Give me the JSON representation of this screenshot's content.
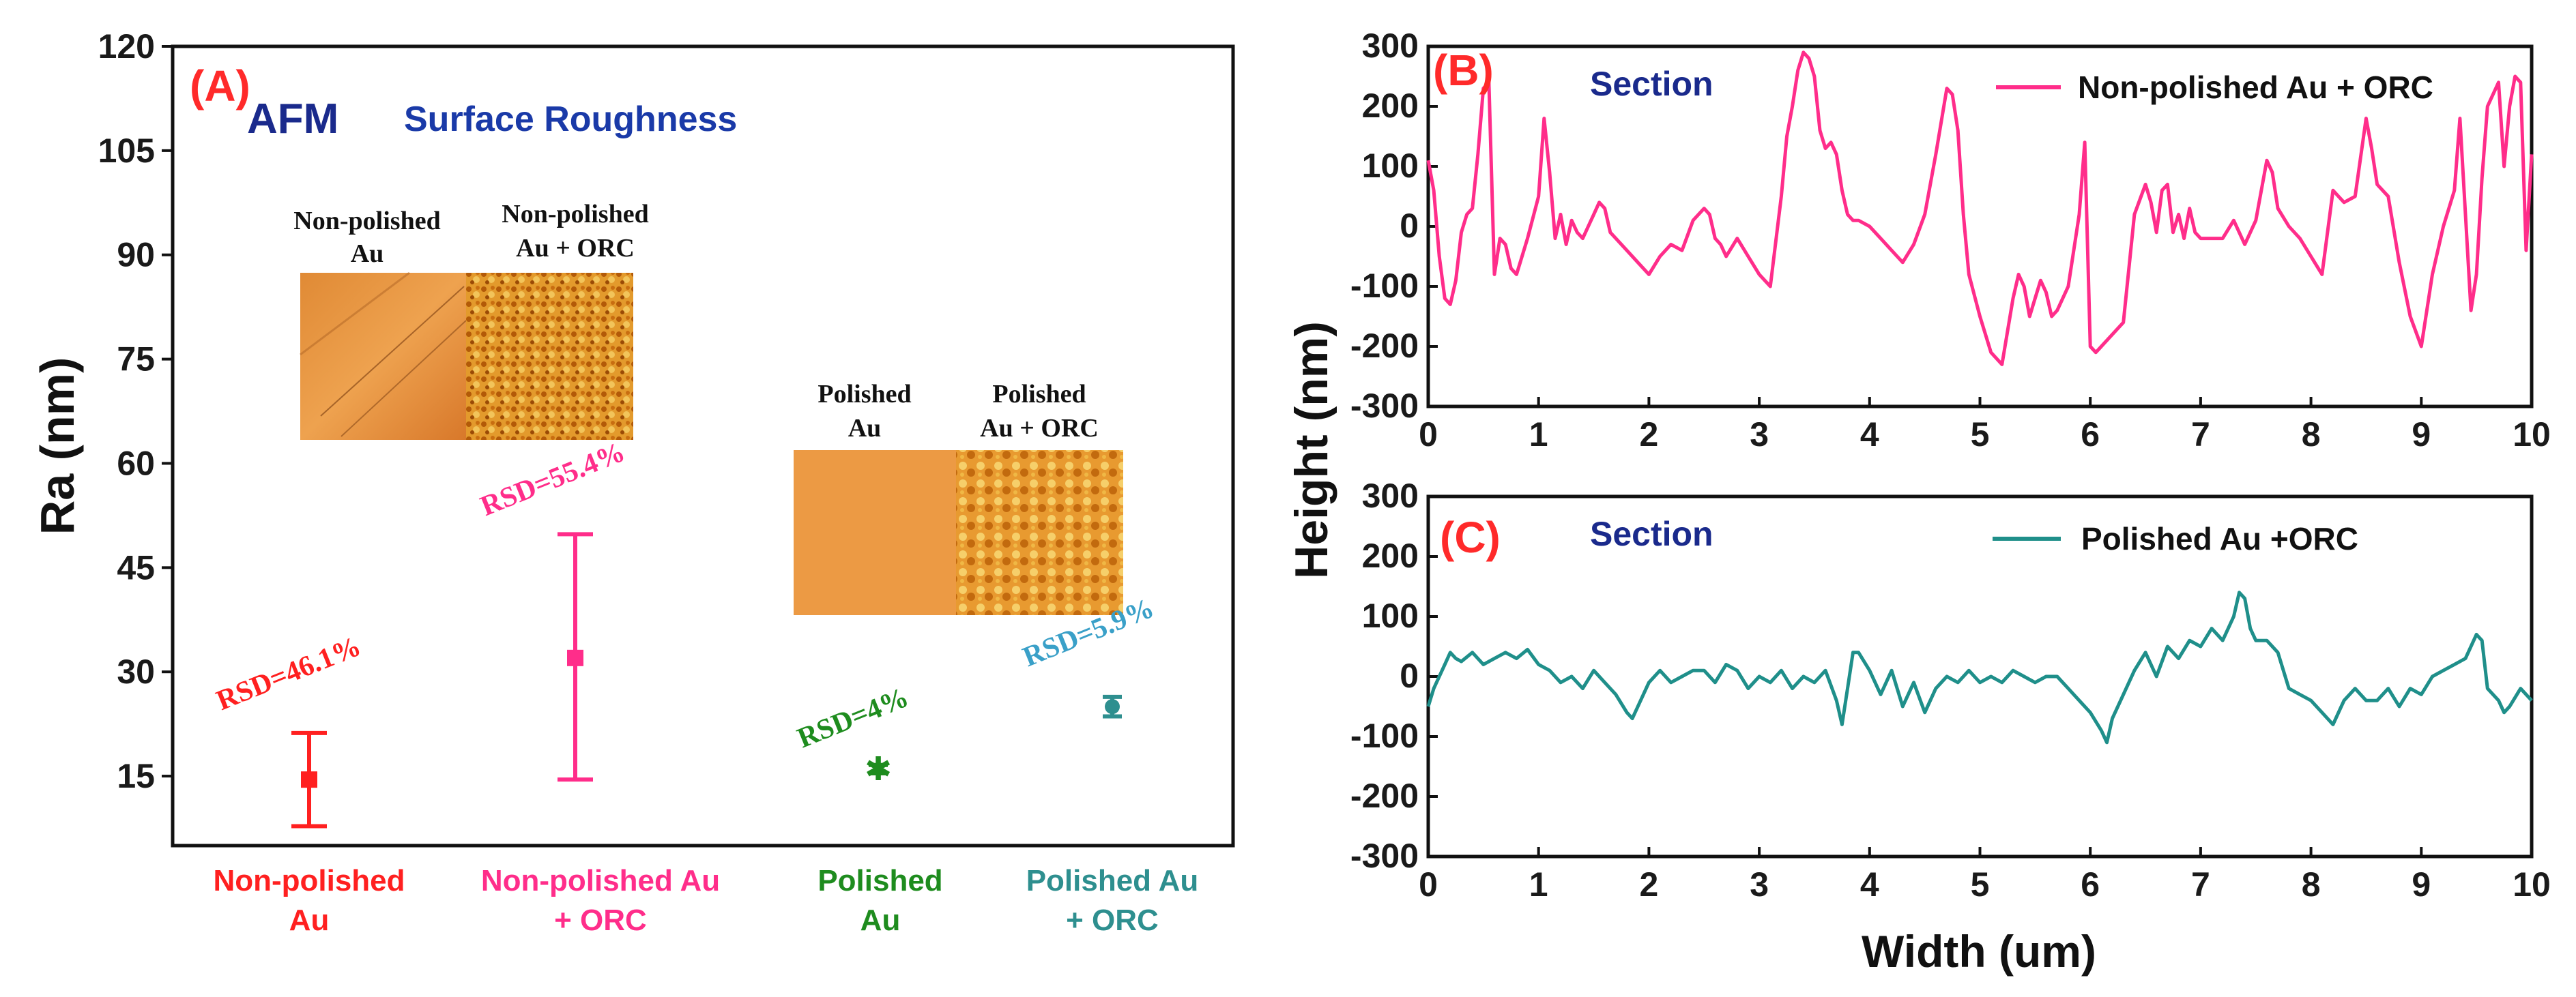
{
  "colors": {
    "nonpolished": "#ff2020",
    "nonpolished_orc": "#ff2d8a",
    "polished": "#1e8c1e",
    "polished_orc": "#2e8f8f",
    "panel_label": "#ff2a2a",
    "title_blue": "#1a2a8c",
    "rsd_polished_orc": "#3aa0c8",
    "trace_b": "#ff2d8a",
    "trace_c": "#1f8f8a",
    "afm_smooth": "#e6882a",
    "afm_rough": "#c8650a"
  },
  "chart_data": [
    {
      "id": "A",
      "type": "scatter",
      "panel_label": "(A)",
      "title_main": "AFM",
      "title_sub": "Surface Roughness",
      "ylabel": "Ra (nm)",
      "xlabel": "",
      "ylim": [
        5,
        120
      ],
      "yticks": [
        15,
        30,
        45,
        60,
        75,
        90,
        105,
        120
      ],
      "categories": [
        "Non-polished Au",
        "Non-polished Au + ORC",
        "Polished Au",
        "Polished Au + ORC"
      ],
      "category_lines": [
        [
          "Non-polished",
          "Au"
        ],
        [
          "Non-polished Au",
          "+ ORC"
        ],
        [
          "Polished",
          "Au"
        ],
        [
          "Polished Au",
          "+ ORC"
        ]
      ],
      "values": [
        14.5,
        32,
        16,
        25
      ],
      "error_low": [
        7.8,
        14.5,
        15.4,
        23.6
      ],
      "error_high": [
        21.2,
        49.8,
        16.6,
        26.4
      ],
      "annotations": [
        "RSD=46.1%",
        "RSD=55.4%",
        "RSD=4%",
        "RSD=5.9%"
      ],
      "inset_captions": {
        "nonpolished_left": [
          "Non-polished",
          "Au"
        ],
        "nonpolished_right": [
          "Non-polished",
          "Au + ORC"
        ],
        "polished_left": [
          "Polished",
          "Au"
        ],
        "polished_right": [
          "Polished",
          "Au + ORC"
        ]
      }
    },
    {
      "id": "B",
      "type": "line",
      "panel_label": "(B)",
      "section_label": "Section",
      "legend": "Non-polished Au + ORC",
      "xlim": [
        0,
        10
      ],
      "ylim": [
        -300,
        300
      ],
      "xticks": [
        0,
        1,
        2,
        3,
        4,
        5,
        6,
        7,
        8,
        9,
        10
      ],
      "yticks": [
        -300,
        -200,
        -100,
        0,
        100,
        200,
        300
      ],
      "x": [
        0,
        0.05,
        0.1,
        0.15,
        0.2,
        0.25,
        0.3,
        0.35,
        0.4,
        0.45,
        0.5,
        0.55,
        0.6,
        0.65,
        0.7,
        0.75,
        0.8,
        0.9,
        1.0,
        1.05,
        1.1,
        1.15,
        1.2,
        1.25,
        1.3,
        1.35,
        1.4,
        1.45,
        1.5,
        1.55,
        1.6,
        1.65,
        1.7,
        1.8,
        1.9,
        2.0,
        2.1,
        2.2,
        2.3,
        2.4,
        2.5,
        2.55,
        2.6,
        2.65,
        2.7,
        2.8,
        2.9,
        3.0,
        3.1,
        3.2,
        3.25,
        3.3,
        3.35,
        3.4,
        3.45,
        3.5,
        3.55,
        3.6,
        3.65,
        3.7,
        3.75,
        3.8,
        3.85,
        3.9,
        4.0,
        4.1,
        4.2,
        4.3,
        4.4,
        4.5,
        4.6,
        4.7,
        4.75,
        4.8,
        4.85,
        4.9,
        5.0,
        5.1,
        5.2,
        5.3,
        5.35,
        5.4,
        5.45,
        5.5,
        5.55,
        5.6,
        5.65,
        5.7,
        5.8,
        5.9,
        5.95,
        6.0,
        6.05,
        6.1,
        6.2,
        6.3,
        6.4,
        6.5,
        6.55,
        6.6,
        6.65,
        6.7,
        6.75,
        6.8,
        6.85,
        6.9,
        6.95,
        7.0,
        7.1,
        7.2,
        7.3,
        7.4,
        7.5,
        7.6,
        7.65,
        7.7,
        7.8,
        7.9,
        8.0,
        8.1,
        8.2,
        8.3,
        8.4,
        8.5,
        8.55,
        8.6,
        8.7,
        8.8,
        8.9,
        9.0,
        9.1,
        9.2,
        9.3,
        9.35,
        9.4,
        9.45,
        9.5,
        9.55,
        9.6,
        9.7,
        9.75,
        9.8,
        9.85,
        9.9,
        9.95,
        10.0
      ],
      "y": [
        110,
        60,
        -50,
        -120,
        -130,
        -90,
        -10,
        20,
        30,
        120,
        230,
        240,
        -80,
        -20,
        -30,
        -70,
        -80,
        -20,
        50,
        180,
        90,
        -20,
        20,
        -30,
        10,
        -10,
        -20,
        0,
        20,
        40,
        30,
        -10,
        -20,
        -40,
        -60,
        -80,
        -50,
        -30,
        -40,
        10,
        30,
        20,
        -20,
        -30,
        -50,
        -20,
        -50,
        -80,
        -100,
        50,
        150,
        200,
        260,
        290,
        280,
        250,
        160,
        130,
        140,
        120,
        60,
        20,
        10,
        10,
        0,
        -20,
        -40,
        -60,
        -30,
        20,
        120,
        230,
        220,
        160,
        20,
        -80,
        -150,
        -210,
        -230,
        -120,
        -80,
        -100,
        -150,
        -120,
        -90,
        -110,
        -150,
        -140,
        -100,
        20,
        140,
        -200,
        -210,
        -200,
        -180,
        -160,
        20,
        70,
        40,
        -10,
        60,
        70,
        -10,
        20,
        -20,
        30,
        -10,
        -20,
        -20,
        -20,
        10,
        -30,
        10,
        110,
        90,
        30,
        0,
        -20,
        -50,
        -80,
        60,
        40,
        50,
        180,
        130,
        70,
        50,
        -60,
        -150,
        -200,
        -80,
        0,
        60,
        180,
        20,
        -140,
        -80,
        80,
        200,
        240,
        100,
        200,
        250,
        240,
        -40,
        120
      ],
      "xlabel": "",
      "ylabel": ""
    },
    {
      "id": "C",
      "type": "line",
      "panel_label": "(C)",
      "section_label": "Section",
      "legend": "Polished Au +ORC",
      "xlim": [
        0,
        10
      ],
      "ylim": [
        -300,
        300
      ],
      "xticks": [
        0,
        1,
        2,
        3,
        4,
        5,
        6,
        7,
        8,
        9,
        10
      ],
      "yticks": [
        -300,
        -200,
        -100,
        0,
        100,
        200,
        300
      ],
      "x": [
        0,
        0.05,
        0.1,
        0.15,
        0.2,
        0.25,
        0.3,
        0.4,
        0.5,
        0.6,
        0.7,
        0.8,
        0.9,
        1.0,
        1.1,
        1.2,
        1.3,
        1.4,
        1.5,
        1.6,
        1.7,
        1.8,
        1.85,
        1.9,
        2.0,
        2.1,
        2.2,
        2.3,
        2.4,
        2.5,
        2.6,
        2.7,
        2.8,
        2.9,
        3.0,
        3.1,
        3.2,
        3.3,
        3.4,
        3.5,
        3.6,
        3.7,
        3.75,
        3.8,
        3.85,
        3.9,
        4.0,
        4.1,
        4.2,
        4.3,
        4.4,
        4.5,
        4.6,
        4.7,
        4.8,
        4.9,
        5.0,
        5.1,
        5.2,
        5.3,
        5.4,
        5.5,
        5.6,
        5.7,
        5.8,
        5.9,
        6.0,
        6.1,
        6.15,
        6.2,
        6.3,
        6.4,
        6.5,
        6.6,
        6.7,
        6.8,
        6.9,
        7.0,
        7.1,
        7.2,
        7.3,
        7.35,
        7.4,
        7.45,
        7.5,
        7.6,
        7.7,
        7.8,
        7.9,
        8.0,
        8.1,
        8.2,
        8.3,
        8.4,
        8.5,
        8.6,
        8.7,
        8.8,
        8.9,
        9.0,
        9.1,
        9.2,
        9.3,
        9.4,
        9.5,
        9.55,
        9.6,
        9.7,
        9.75,
        9.8,
        9.9,
        10.0
      ],
      "y": [
        -50,
        -20,
        0,
        20,
        40,
        30,
        25,
        40,
        20,
        30,
        40,
        30,
        45,
        20,
        10,
        -10,
        0,
        -20,
        10,
        -10,
        -30,
        -60,
        -70,
        -50,
        -10,
        10,
        -10,
        0,
        10,
        10,
        -10,
        20,
        10,
        -20,
        0,
        -10,
        10,
        -20,
        0,
        -10,
        10,
        -40,
        -80,
        -20,
        40,
        40,
        10,
        -30,
        10,
        -50,
        -10,
        -60,
        -20,
        0,
        -10,
        10,
        -10,
        0,
        -10,
        10,
        0,
        -10,
        0,
        0,
        -20,
        -40,
        -60,
        -90,
        -110,
        -70,
        -30,
        10,
        40,
        0,
        50,
        30,
        60,
        50,
        80,
        60,
        100,
        140,
        130,
        80,
        60,
        60,
        40,
        -20,
        -30,
        -40,
        -60,
        -80,
        -40,
        -20,
        -40,
        -40,
        -20,
        -50,
        -20,
        -30,
        0,
        10,
        20,
        30,
        70,
        60,
        -20,
        -40,
        -60,
        -50,
        -20,
        -40
      ],
      "xlabel": "Width (um)",
      "ylabel": ""
    }
  ],
  "shared": {
    "bc_ylabel": "Height (nm)",
    "bc_xlabel": "Width (um)"
  }
}
